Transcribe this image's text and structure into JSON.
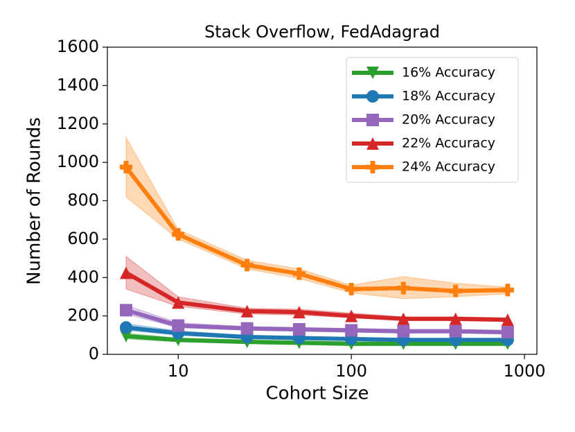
{
  "chart_data": {
    "type": "line",
    "title": "Stack Overflow, FedAdagrad",
    "x_label": "Cohort Size",
    "y_label": "Number of Rounds",
    "x": [
      5,
      10,
      25,
      50,
      100,
      200,
      400,
      800
    ],
    "xlim": [
      3.9,
      1180
    ],
    "xscale": "log",
    "xticks": [
      10,
      100,
      1000
    ],
    "ylim": [
      0,
      1600
    ],
    "yticks": [
      0,
      200,
      400,
      600,
      800,
      1000,
      1200,
      1400,
      1600
    ],
    "legend": "upper right",
    "series": [
      {
        "name": "16% Accuracy",
        "color": "#2ca02c",
        "marker": "v",
        "values": [
          95,
          75,
          65,
          60,
          55,
          55,
          55,
          55
        ],
        "lower": [
          80,
          65,
          55,
          50,
          45,
          45,
          45,
          45
        ],
        "upper": [
          110,
          85,
          75,
          70,
          65,
          65,
          65,
          65
        ]
      },
      {
        "name": "18% Accuracy",
        "color": "#1f77b4",
        "marker": "o",
        "values": [
          140,
          110,
          90,
          85,
          80,
          75,
          75,
          75
        ],
        "lower": [
          125,
          100,
          82,
          78,
          72,
          68,
          68,
          68
        ],
        "upper": [
          160,
          122,
          100,
          93,
          88,
          83,
          83,
          83
        ]
      },
      {
        "name": "20% Accuracy",
        "color": "#9467bd",
        "marker": "s",
        "values": [
          230,
          150,
          135,
          130,
          125,
          120,
          120,
          115
        ],
        "lower": [
          210,
          138,
          125,
          120,
          115,
          110,
          110,
          105
        ],
        "upper": [
          255,
          165,
          145,
          140,
          135,
          130,
          130,
          125
        ]
      },
      {
        "name": "22% Accuracy",
        "color": "#d62728",
        "marker": "^",
        "values": [
          425,
          270,
          225,
          220,
          200,
          185,
          185,
          180
        ],
        "lower": [
          340,
          250,
          210,
          205,
          190,
          175,
          175,
          170
        ],
        "upper": [
          510,
          300,
          240,
          235,
          215,
          195,
          195,
          190
        ]
      },
      {
        "name": "24% Accuracy",
        "color": "#ff7f0e",
        "marker": "P",
        "values": [
          975,
          625,
          465,
          420,
          340,
          345,
          330,
          335
        ],
        "lower": [
          820,
          600,
          445,
          395,
          320,
          290,
          300,
          315
        ],
        "upper": [
          1130,
          650,
          490,
          445,
          360,
          405,
          370,
          350
        ]
      }
    ]
  }
}
